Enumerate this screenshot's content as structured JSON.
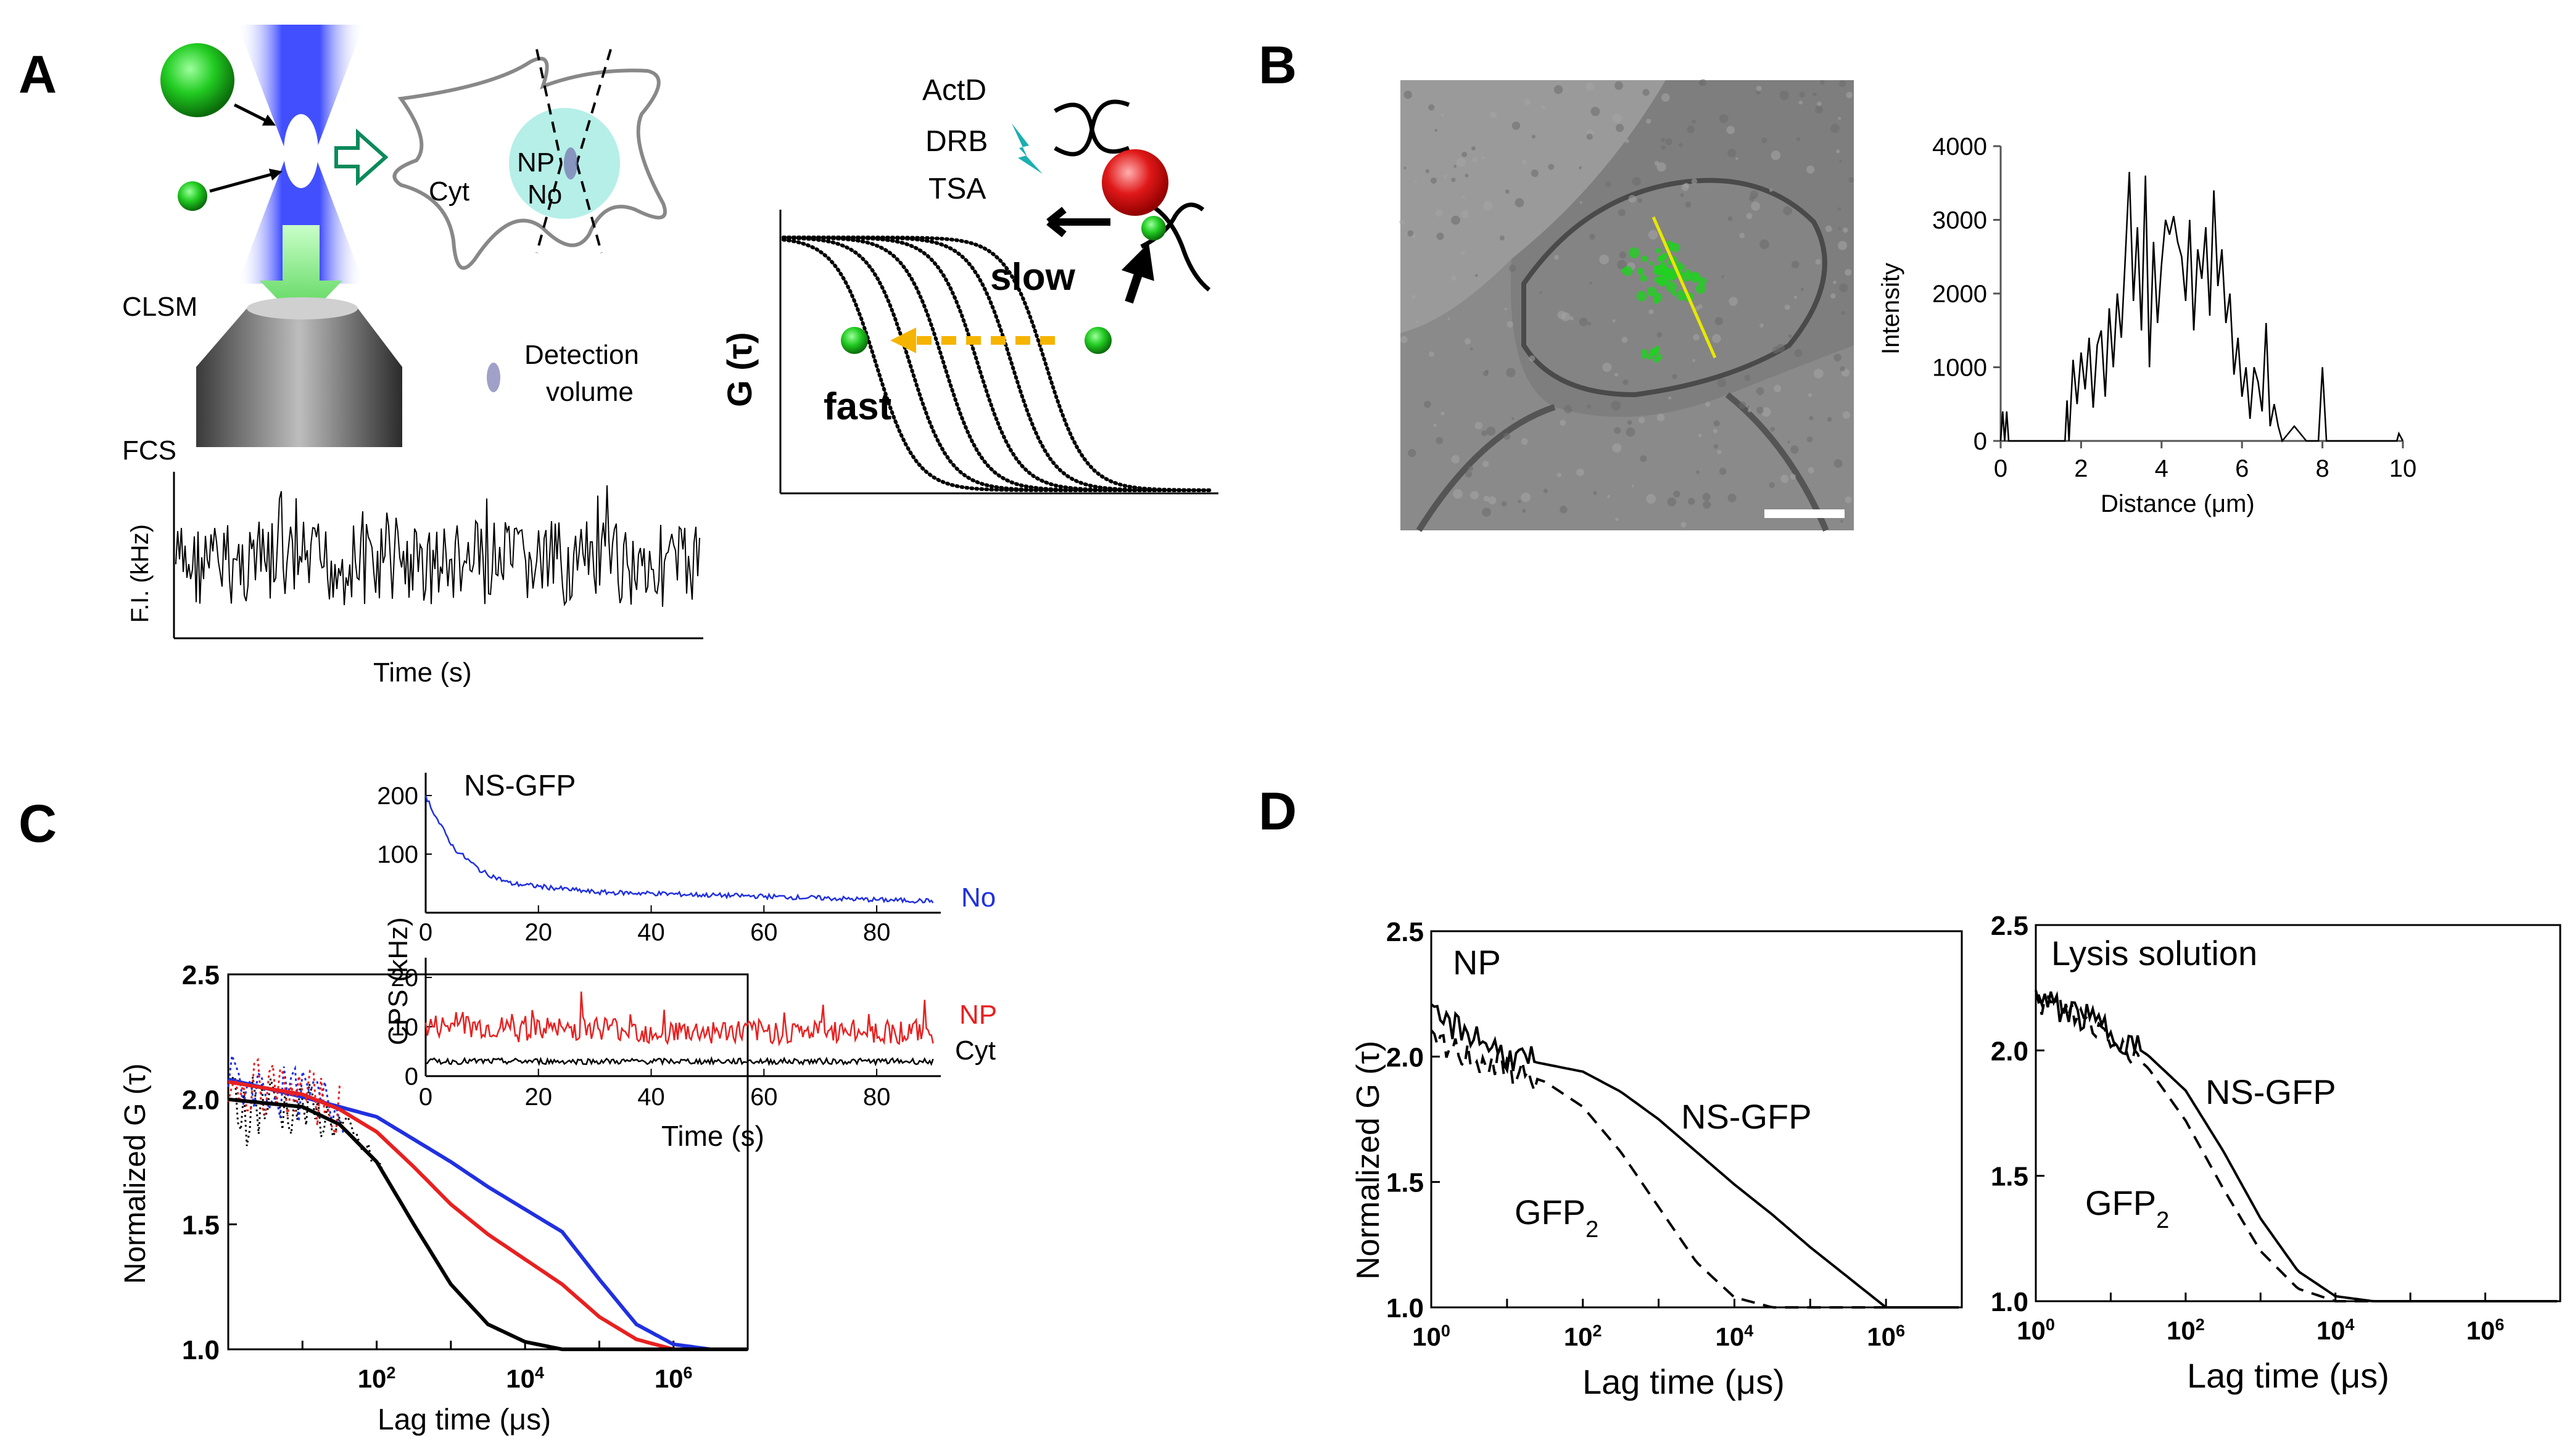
{
  "panel_a": {
    "letter": "A",
    "nucleus_np": "NP",
    "nucleus_no": "No",
    "cytoplasm": "Cyt",
    "microscope": "CLSM",
    "detection_line1": "Detection",
    "detection_line2": "volume",
    "fcs_label": "FCS",
    "trace_ylabel": "F.I. (kHz)",
    "trace_xlabel": "Time  (s)",
    "drugs": [
      "ActD",
      "DRB",
      "TSA"
    ],
    "slow_label": "slow",
    "fast_label": "fast",
    "g_label": "G (τ)"
  },
  "panel_b": {
    "letter": "B",
    "chart_data": {
      "type": "line",
      "title": "",
      "xlabel": "Distance (μm)",
      "ylabel": "Intensity",
      "xlim": [
        0,
        10
      ],
      "ylim": [
        0,
        4000
      ],
      "xticks": [
        "0",
        "2",
        "4",
        "6",
        "8",
        "10"
      ],
      "yticks": [
        "0",
        "1000",
        "2000",
        "3000",
        "4000"
      ],
      "x": [
        0,
        0.05,
        0.1,
        0.15,
        0.2,
        0.3,
        0.5,
        0.8,
        1.2,
        1.6,
        1.65,
        1.7,
        1.8,
        1.9,
        2.0,
        2.1,
        2.2,
        2.3,
        2.4,
        2.5,
        2.6,
        2.7,
        2.8,
        2.9,
        3.0,
        3.1,
        3.2,
        3.3,
        3.4,
        3.5,
        3.6,
        3.7,
        3.8,
        3.9,
        4.0,
        4.1,
        4.2,
        4.3,
        4.4,
        4.5,
        4.6,
        4.7,
        4.8,
        4.9,
        5.0,
        5.1,
        5.2,
        5.3,
        5.4,
        5.5,
        5.6,
        5.7,
        5.8,
        5.9,
        6.0,
        6.1,
        6.2,
        6.3,
        6.4,
        6.5,
        6.6,
        6.7,
        6.8,
        6.9,
        7.0,
        7.3,
        7.6,
        7.9,
        8.0,
        8.1,
        8.2,
        8.3,
        8.6,
        9.0,
        9.5,
        9.8,
        9.85,
        9.9,
        10
      ],
      "values": [
        0,
        400,
        0,
        400,
        0,
        0,
        0,
        0,
        0,
        0,
        550,
        0,
        1100,
        500,
        1200,
        700,
        1400,
        450,
        1300,
        1500,
        600,
        1800,
        1000,
        2000,
        1400,
        2500,
        3650,
        1900,
        2900,
        1500,
        3600,
        1000,
        2700,
        1600,
        2400,
        3000,
        2800,
        3050,
        2700,
        2500,
        1900,
        3000,
        1500,
        2600,
        2200,
        2900,
        1700,
        3400,
        2100,
        2600,
        1600,
        2000,
        900,
        1400,
        600,
        1000,
        300,
        1000,
        800,
        400,
        1600,
        200,
        500,
        200,
        0,
        200,
        0,
        0,
        1000,
        0,
        0,
        0,
        0,
        0,
        0,
        0,
        0,
        100,
        0
      ]
    }
  },
  "panel_c": {
    "letter": "C",
    "chart_data": {
      "type": "line",
      "title": "",
      "xlabel": "Lag time (μs)",
      "ylabel": "Normalized G (τ)",
      "xscale": "log",
      "xlim": [
        1,
        10000000
      ],
      "ylim": [
        1.0,
        2.5
      ],
      "xticks": [
        "10^2",
        "10^4",
        "10^6"
      ],
      "yticks": [
        "1.0",
        "1.5",
        "2.0",
        "2.5"
      ],
      "series": [
        {
          "name": "No",
          "color": "#2030e0",
          "x_log10": [
            0,
            1,
            2,
            3,
            3.5,
            4,
            4.5,
            5,
            5.5,
            6,
            6.5,
            7
          ],
          "values": [
            2.08,
            2.01,
            1.93,
            1.75,
            1.65,
            1.56,
            1.47,
            1.28,
            1.1,
            1.02,
            1.0,
            1.0
          ]
        },
        {
          "name": "NP",
          "color": "#e82020",
          "x_log10": [
            0,
            1,
            1.5,
            2,
            2.5,
            3,
            3.5,
            4,
            4.5,
            5,
            5.5,
            6,
            7
          ],
          "values": [
            2.07,
            2.02,
            1.96,
            1.87,
            1.73,
            1.58,
            1.46,
            1.36,
            1.26,
            1.13,
            1.04,
            1.0,
            1.0
          ]
        },
        {
          "name": "Cyt",
          "color": "#000000",
          "x_log10": [
            0,
            1,
            1.5,
            2,
            2.5,
            3,
            3.5,
            4,
            4.5,
            5,
            6,
            7
          ],
          "values": [
            2.0,
            1.97,
            1.9,
            1.75,
            1.5,
            1.26,
            1.1,
            1.03,
            1.0,
            1.0,
            1.0,
            1.0
          ]
        }
      ],
      "inset": {
        "title": "NS-GFP",
        "xlabel": "Time (s)",
        "ylabel": "CPS (kHz)",
        "top_yticks": [
          "100",
          "200"
        ],
        "bottom_yticks": [
          "0",
          "10",
          "20"
        ],
        "xticks": [
          "0",
          "20",
          "40",
          "60",
          "80"
        ],
        "xlim": [
          0,
          90
        ],
        "series": [
          {
            "name": "No",
            "color": "#2030e0",
            "x": [
              0,
              2,
              5,
              10,
              15,
              20,
              30,
              40,
              50,
              60,
              70,
              80,
              90
            ],
            "values": [
              200,
              160,
              110,
              70,
              50,
              45,
              35,
              33,
              30,
              28,
              25,
              22,
              20
            ]
          },
          {
            "name": "NP",
            "color": "#e82020",
            "x": [
              0,
              10,
              20,
              30,
              40,
              50,
              60,
              70,
              80,
              90
            ],
            "values": [
              10,
              10,
              9,
              10,
              9,
              9,
              9,
              9,
              9,
              9
            ]
          },
          {
            "name": "Cyt",
            "color": "#000000",
            "x": [
              0,
              10,
              20,
              30,
              40,
              50,
              60,
              70,
              80,
              90
            ],
            "values": [
              3,
              3,
              3,
              3,
              3,
              3,
              3,
              3,
              3,
              3
            ]
          }
        ]
      }
    }
  },
  "panel_d": {
    "letter": "D",
    "shared_ylabel": "Normalized G (τ)",
    "chart_data": [
      {
        "type": "line",
        "title": "NP",
        "xlabel": "Lag time (μs)",
        "xscale": "log",
        "xlim": [
          1,
          10000000
        ],
        "ylim": [
          1.0,
          2.5
        ],
        "xticks": [
          "10^0",
          "10^2",
          "10^4",
          "10^6"
        ],
        "yticks": [
          "1.0",
          "1.5",
          "2.0",
          "2.5"
        ],
        "series": [
          {
            "name": "NS-GFP",
            "style": "solid",
            "x_log10": [
              0,
              0.5,
              1,
              1.5,
              2,
              2.5,
              3,
              3.5,
              4,
              4.5,
              5,
              5.5,
              6,
              7
            ],
            "values": [
              2.15,
              2.1,
              2.0,
              1.97,
              1.94,
              1.86,
              1.75,
              1.62,
              1.49,
              1.37,
              1.24,
              1.12,
              1.0,
              1.0
            ]
          },
          {
            "name": "GFP2",
            "style": "dashed",
            "x_log10": [
              0,
              0.5,
              1,
              1.5,
              2,
              2.5,
              3,
              3.5,
              4,
              4.5,
              7
            ],
            "values": [
              2.05,
              2.0,
              1.95,
              1.9,
              1.8,
              1.62,
              1.4,
              1.18,
              1.04,
              1.0,
              1.0
            ]
          }
        ]
      },
      {
        "type": "line",
        "title": "Lysis solution",
        "xlabel": "Lag time (μs)",
        "xscale": "log",
        "xlim": [
          1,
          10000000
        ],
        "ylim": [
          1.0,
          2.5
        ],
        "xticks": [
          "10^0",
          "10^2",
          "10^4",
          "10^6"
        ],
        "yticks": [
          "1.0",
          "1.5",
          "2.0",
          "2.5"
        ],
        "series": [
          {
            "name": "NS-GFP",
            "style": "solid",
            "x_log10": [
              0,
              0.5,
              1,
              1.5,
              2,
              2.5,
              3,
              3.5,
              4,
              4.5,
              7
            ],
            "values": [
              2.2,
              2.15,
              2.08,
              1.98,
              1.84,
              1.6,
              1.33,
              1.12,
              1.02,
              1.0,
              1.0
            ]
          },
          {
            "name": "GFP2",
            "style": "dashed",
            "x_log10": [
              0,
              0.5,
              1,
              1.5,
              2,
              2.5,
              3,
              3.5,
              4,
              7
            ],
            "values": [
              2.2,
              2.15,
              2.06,
              1.93,
              1.72,
              1.45,
              1.2,
              1.05,
              1.0,
              1.0
            ]
          }
        ]
      }
    ]
  }
}
